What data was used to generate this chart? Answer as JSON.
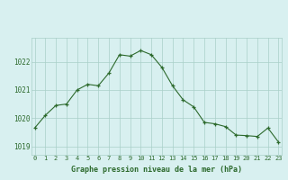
{
  "hours": [
    0,
    1,
    2,
    3,
    4,
    5,
    6,
    7,
    8,
    9,
    10,
    11,
    12,
    13,
    14,
    15,
    16,
    17,
    18,
    19,
    20,
    21,
    22,
    23
  ],
  "pressure": [
    1019.65,
    1020.1,
    1020.45,
    1020.5,
    1021.0,
    1021.2,
    1021.15,
    1021.6,
    1022.25,
    1022.2,
    1022.4,
    1022.25,
    1021.8,
    1021.15,
    1020.65,
    1020.4,
    1019.85,
    1019.8,
    1019.7,
    1019.4,
    1019.38,
    1019.35,
    1019.65,
    1019.15
  ],
  "line_color": "#2d6a2d",
  "marker_color": "#2d6a2d",
  "bg_color": "#d8f0f0",
  "grid_color": "#aacfc8",
  "xlabel": "Graphe pression niveau de la mer (hPa)",
  "xlabel_color": "#2d6a2d",
  "tick_color": "#2d6a2d",
  "ylim": [
    1018.7,
    1022.85
  ],
  "yticks": [
    1019,
    1020,
    1021,
    1022
  ],
  "xticks": [
    0,
    1,
    2,
    3,
    4,
    5,
    6,
    7,
    8,
    9,
    10,
    11,
    12,
    13,
    14,
    15,
    16,
    17,
    18,
    19,
    20,
    21,
    22,
    23
  ],
  "fig_width": 3.2,
  "fig_height": 2.0,
  "dpi": 100
}
